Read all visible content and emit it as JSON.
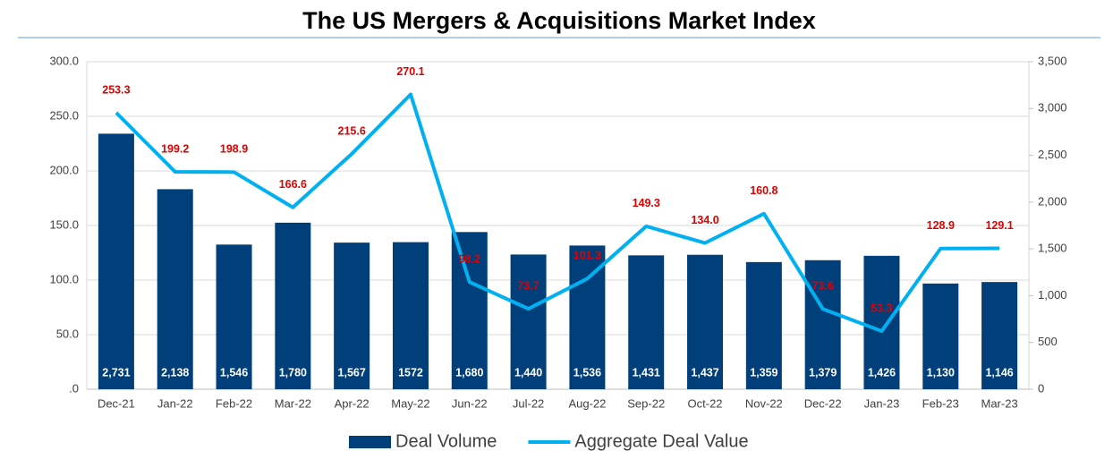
{
  "chart_data": {
    "type": "bar-line",
    "title": "The US Mergers & Acquisitions Market Index",
    "categories": [
      "Dec-21",
      "Jan-22",
      "Feb-22",
      "Mar-22",
      "Apr-22",
      "May-22",
      "Jun-22",
      "Jul-22",
      "Aug-22",
      "Sep-22",
      "Oct-22",
      "Nov-22",
      "Dec-22",
      "Jan-23",
      "Feb-23",
      "Mar-23"
    ],
    "series": [
      {
        "name": "Deal Volume",
        "type": "bar",
        "axis": "y2",
        "color": "#003f7a",
        "values": [
          2731,
          2138,
          1546,
          1780,
          1567,
          1572,
          1680,
          1440,
          1536,
          1431,
          1437,
          1359,
          1379,
          1426,
          1130,
          1146
        ],
        "value_labels": [
          "2,731",
          "2,138",
          "1,546",
          "1,780",
          "1,567",
          "1572",
          "1,680",
          "1,440",
          "1,536",
          "1,431",
          "1,437",
          "1,359",
          "1,379",
          "1,426",
          "1,130",
          "1,146"
        ],
        "label_color": "#ffffff"
      },
      {
        "name": "Aggregate Deal Value",
        "type": "line",
        "axis": "y",
        "color": "#00b0f0",
        "values": [
          253.3,
          199.2,
          198.9,
          166.6,
          215.6,
          270.1,
          98.2,
          73.7,
          101.3,
          149.3,
          134.0,
          160.8,
          73.6,
          53.3,
          128.9,
          129.1
        ],
        "value_labels": [
          "253.3",
          "199.2",
          "198.9",
          "166.6",
          "215.6",
          "270.1",
          "98.2",
          "73.7",
          "101.3",
          "149.3",
          "134.0",
          "160.8",
          "73.6",
          "53.3",
          "128.9",
          "129.1"
        ],
        "label_color": "#e00000"
      }
    ],
    "ylim": [
      0,
      300
    ],
    "yticks": [
      {
        "value": 0,
        "label": ".0"
      },
      {
        "value": 50,
        "label": "50.0"
      },
      {
        "value": 100,
        "label": "100.0"
      },
      {
        "value": 150,
        "label": "150.0"
      },
      {
        "value": 200,
        "label": "200.0"
      },
      {
        "value": 250,
        "label": "250.0"
      },
      {
        "value": 300,
        "label": "300.0"
      }
    ],
    "y2lim": [
      0,
      3500
    ],
    "y2ticks": [
      0,
      500,
      {
        "value": 1000,
        "label": "1,000"
      },
      {
        "value": 1500,
        "label": "1,500"
      },
      {
        "value": 2000,
        "label": "2,000"
      },
      {
        "value": 2500,
        "label": "2,500"
      },
      {
        "value": 3000,
        "label": "3,000"
      },
      {
        "value": 3500,
        "label": "3,500"
      }
    ],
    "grid": true,
    "legend": "bottom"
  }
}
